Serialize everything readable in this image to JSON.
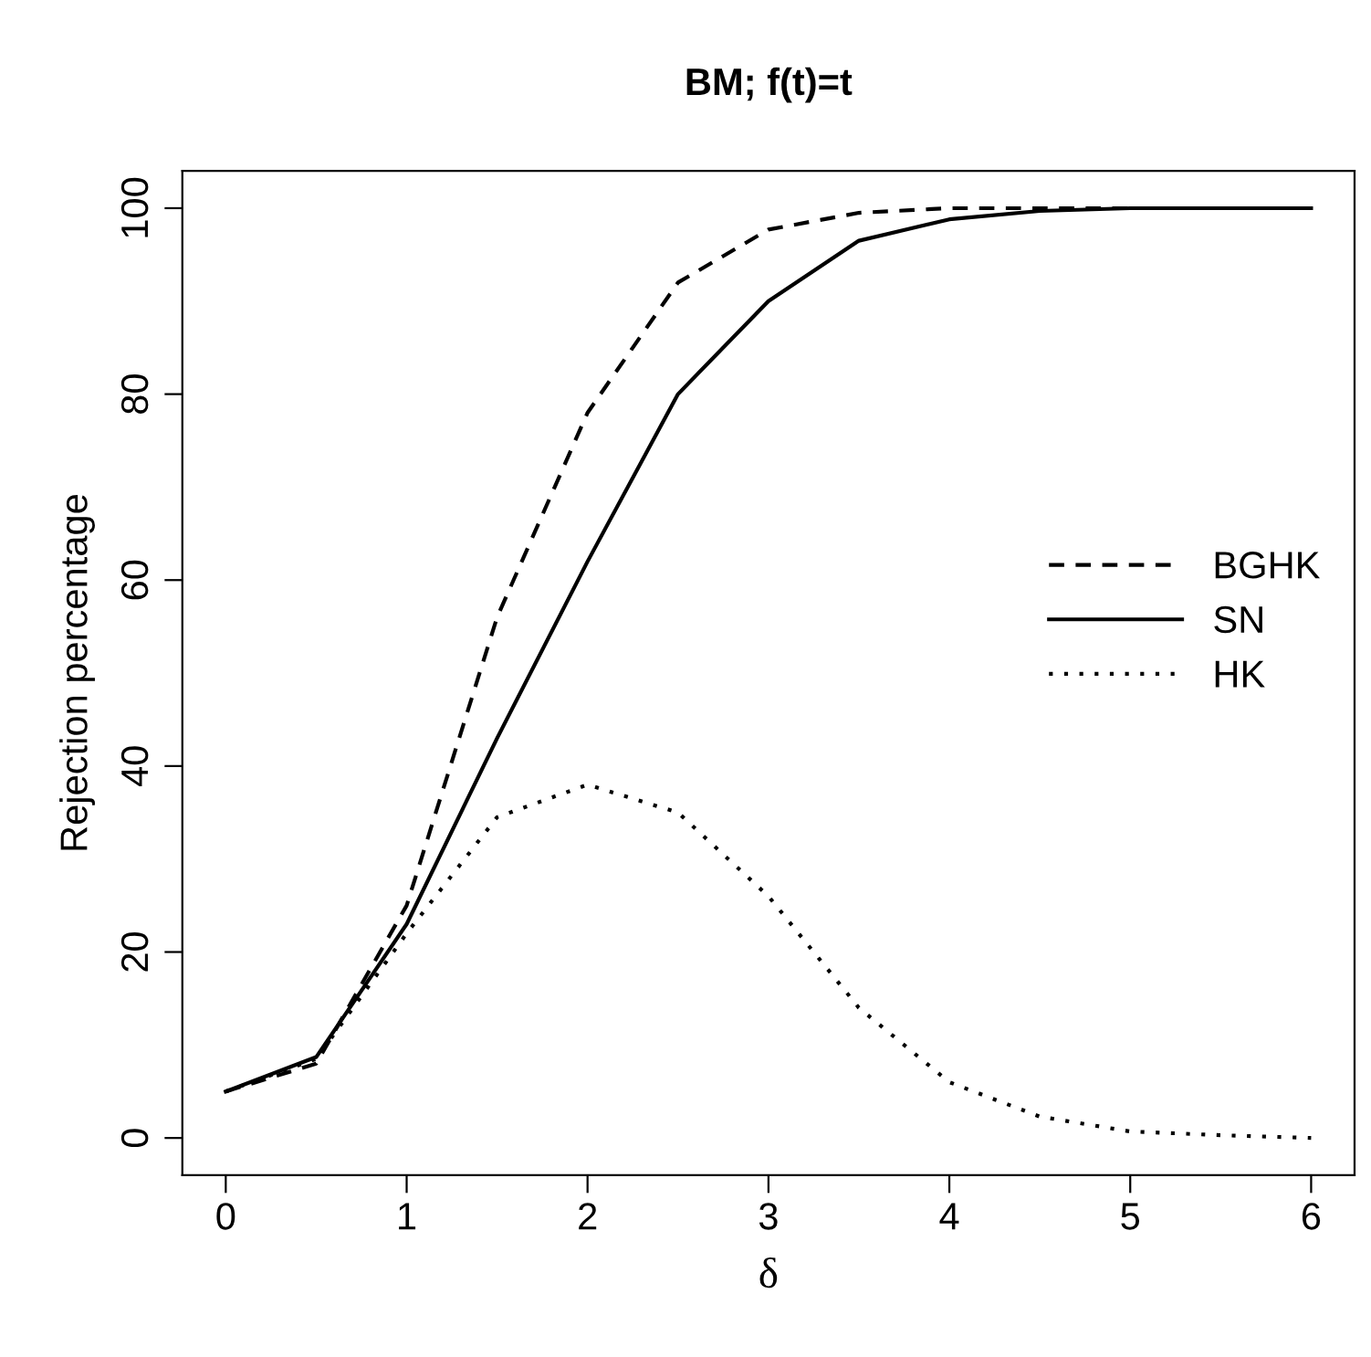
{
  "chart_data": {
    "type": "line",
    "title": "BM; f(t)=t",
    "xlabel": "δ",
    "ylabel": "Rejection percentage",
    "x": [
      0,
      0.5,
      1,
      1.5,
      2,
      2.5,
      3,
      3.5,
      4,
      4.5,
      5,
      5.5,
      6
    ],
    "series": [
      {
        "name": "BGHK",
        "color": "#000000",
        "line_style": "dashed",
        "values": [
          5,
          8,
          25,
          56,
          78,
          92,
          97.7,
          99.5,
          100,
          100,
          100,
          100,
          100
        ]
      },
      {
        "name": "SN",
        "color": "#000000",
        "line_style": "solid",
        "values": [
          5,
          8.7,
          23,
          43,
          62,
          80,
          90,
          96.5,
          98.8,
          99.7,
          100,
          100,
          100
        ]
      },
      {
        "name": "HK",
        "color": "#000000",
        "line_style": "dotted",
        "values": [
          5,
          8.5,
          22,
          34.5,
          38,
          35,
          26,
          14,
          6,
          2.3,
          0.7,
          0.3,
          0
        ]
      }
    ],
    "xlim": [
      -0.24,
      6.24
    ],
    "ylim": [
      -4,
      104
    ],
    "xticks": [
      0,
      1,
      2,
      3,
      4,
      5,
      6
    ],
    "yticks": [
      0,
      20,
      40,
      60,
      80,
      100
    ],
    "grid": false,
    "legend": "right",
    "marker": "none"
  }
}
